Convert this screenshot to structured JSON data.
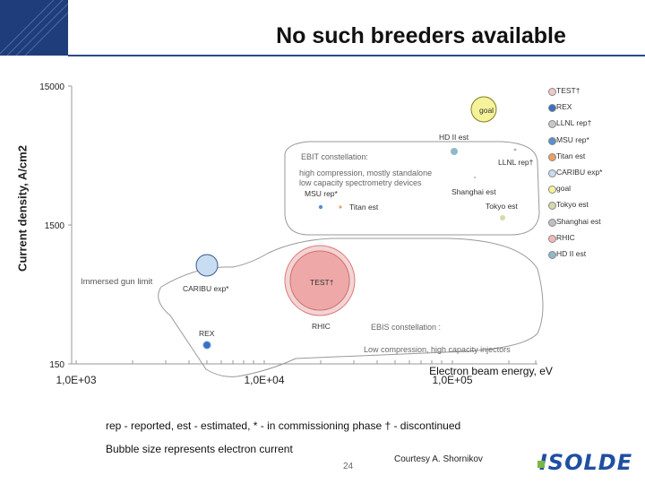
{
  "header": {
    "title": "No such breeders available"
  },
  "chart_data": {
    "type": "scatter",
    "title": "No such breeders available",
    "xlabel": "Electron beam energy, eV",
    "ylabel": "Current density, A/cm2",
    "x_scale": "log",
    "y_scale": "log",
    "xlim": [
      1000,
      200000
    ],
    "ylim": [
      150,
      15000
    ],
    "x_ticks": [
      "1,0E+03",
      "1,0E+04",
      "1,0E+05"
    ],
    "y_ticks": [
      "15000",
      "1500",
      "150"
    ],
    "grid": false,
    "legend_position": "right",
    "points": [
      {
        "name": "TEST†",
        "x": 22000,
        "y": 700,
        "bubble": "large",
        "color": "#e8a0a0",
        "label": "TEST†"
      },
      {
        "name": "REX",
        "x": 3000,
        "y": 200,
        "bubble": "small",
        "color": "#3a6fc0",
        "label": "REX"
      },
      {
        "name": "LLNL rep†",
        "x": 150000,
        "y": 3900,
        "bubble": "tiny",
        "color": "#c8c8c8",
        "label": "LLNL rep†"
      },
      {
        "name": "MSU rep*",
        "x": 15000,
        "y": 1800,
        "bubble": "small",
        "color": "#5b8fd0",
        "label": "MSU rep*"
      },
      {
        "name": "Titan est",
        "x": 18000,
        "y": 1800,
        "bubble": "tiny",
        "color": "#f0a060",
        "label": "Titan est"
      },
      {
        "name": "CARIBU exp*",
        "x": 3000,
        "y": 800,
        "bubble": "medium",
        "color": "#c8ddf2",
        "label": "CARIBU exp*"
      },
      {
        "name": "goal",
        "x": 80000,
        "y": 9500,
        "bubble": "medium",
        "color": "#f6f29a",
        "label": "goal"
      },
      {
        "name": "Tokyo est",
        "x": 130000,
        "y": 1650,
        "bubble": "small",
        "color": "#d8d8b0",
        "label": "Tokyo est"
      },
      {
        "name": "Shanghai est",
        "x": 85000,
        "y": 2700,
        "bubble": "tiny",
        "color": "#c0c0c0",
        "label": "Shanghai est"
      },
      {
        "name": "RHIC",
        "x": 23000,
        "y": 400,
        "bubble": "large",
        "color": "#f4b8b8",
        "label": "RHIC"
      },
      {
        "name": "HD II est",
        "x": 80000,
        "y": 4000,
        "bubble": "small",
        "color": "#8fb9c9",
        "label": "HD II est"
      }
    ],
    "annotations": {
      "immersed": "Immersed gun limit",
      "ebit1": "EBIT constellation:",
      "ebit2": "high compression, mostly standalone",
      "ebit3": "low capacity spectrometry devices",
      "ebis1": "EBIS constellation :",
      "ebis2": "Low compression, high capacity injectors"
    }
  },
  "legend": [
    {
      "label": "TEST†",
      "color": "#f4c8c8"
    },
    {
      "label": "REX",
      "color": "#3a6fc0"
    },
    {
      "label": "LLNL rep†",
      "color": "#c8c8c8"
    },
    {
      "label": "MSU rep*",
      "color": "#5b8fd0"
    },
    {
      "label": "Titan est",
      "color": "#f0a060"
    },
    {
      "label": "CARIBU exp*",
      "color": "#c8ddf2"
    },
    {
      "label": "goal",
      "color": "#f6f29a"
    },
    {
      "label": "Tokyo est",
      "color": "#d8d8b0"
    },
    {
      "label": "Shanghai est",
      "color": "#c0c0c0"
    },
    {
      "label": "RHIC",
      "color": "#f4b8b8"
    },
    {
      "label": "HD II est",
      "color": "#8fb9c9"
    }
  ],
  "footer": {
    "footnote": "rep - reported, est - estimated, * - in commissioning phase † - discontinued",
    "bubble_note": "Bubble size represents electron current",
    "page_number": "24",
    "courtesy": "Courtesy A. Shornikov",
    "logo_text": "ISOLDE",
    "logo_color": "#1f4fa0"
  }
}
